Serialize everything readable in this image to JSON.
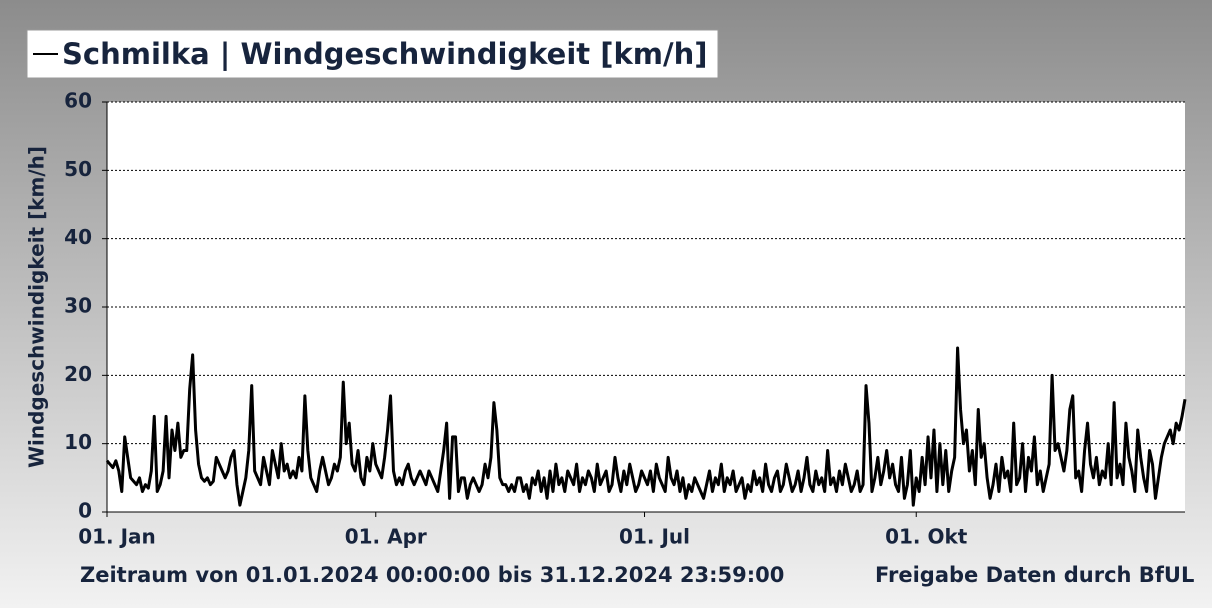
{
  "chart_data": {
    "type": "line",
    "y_label": "Windgeschwindigkeit [km/h]",
    "footer_left": "Zeitraum von 01.01.2024 00:00:00 bis 31.12.2024 23:59:00",
    "footer_right": "Freigabe Daten durch BfUL",
    "ylim": [
      0,
      60
    ],
    "yticks": [
      0,
      10,
      20,
      30,
      40,
      50,
      60
    ],
    "grid": true,
    "categories": [
      "01. Jan",
      null,
      null,
      null,
      null,
      null,
      null,
      null,
      null,
      null,
      null,
      null,
      null,
      null,
      null,
      null,
      null,
      null,
      null,
      null,
      null,
      null,
      null,
      null,
      null,
      null,
      null,
      null,
      null,
      null,
      null,
      null,
      null,
      null,
      null,
      null,
      null,
      null,
      null,
      null,
      null,
      null,
      null,
      null,
      null,
      null,
      null,
      null,
      null,
      null,
      null,
      null,
      null,
      null,
      null,
      null,
      null,
      null,
      null,
      null,
      null,
      null,
      null,
      null,
      null,
      null,
      null,
      null,
      null,
      null,
      null,
      null,
      null,
      null,
      null,
      null,
      null,
      null,
      null,
      null,
      null,
      null,
      null,
      null,
      null,
      null,
      null,
      null,
      null,
      null,
      null,
      "01. Apr",
      null,
      null,
      null,
      null,
      null,
      null,
      null,
      null,
      null,
      null,
      null,
      null,
      null,
      null,
      null,
      null,
      null,
      null,
      null,
      null,
      null,
      null,
      null,
      null,
      null,
      null,
      null,
      null,
      null,
      null,
      null,
      null,
      null,
      null,
      null,
      null,
      null,
      null,
      null,
      null,
      null,
      null,
      null,
      null,
      null,
      null,
      null,
      null,
      null,
      null,
      null,
      null,
      null,
      null,
      null,
      null,
      null,
      null,
      null,
      null,
      null,
      null,
      null,
      null,
      null,
      null,
      null,
      null,
      null,
      null,
      null,
      null,
      null,
      null,
      null,
      null,
      null,
      null,
      null,
      null,
      null,
      null,
      null,
      null,
      null,
      null,
      null,
      null,
      null,
      null,
      "01. Jul",
      null,
      null,
      null,
      null,
      null,
      null,
      null,
      null,
      null,
      null,
      null,
      null,
      null,
      null,
      null,
      null,
      null,
      null,
      null,
      null,
      null,
      null,
      null,
      null,
      null,
      null,
      null,
      null,
      null,
      null,
      null,
      null,
      null,
      null,
      null,
      null,
      null,
      null,
      null,
      null,
      null,
      null,
      null,
      null,
      null,
      null,
      null,
      null,
      null,
      null,
      null,
      null,
      null,
      null,
      null,
      null,
      null,
      null,
      null,
      null,
      null,
      null,
      null,
      null,
      null,
      null,
      null,
      null,
      null,
      null,
      null,
      null,
      null,
      null,
      null,
      null,
      null,
      null,
      null,
      null,
      null,
      null,
      null,
      null,
      null,
      null,
      null,
      null,
      null,
      null,
      null,
      "01. Okt",
      null,
      null,
      null,
      null,
      null,
      null,
      null,
      null,
      null,
      null,
      null,
      null,
      null,
      null,
      null,
      null,
      null,
      null,
      null,
      null,
      null,
      null,
      null,
      null,
      null,
      null,
      null,
      null,
      null,
      null,
      null,
      null,
      null,
      null,
      null,
      null,
      null,
      null,
      null,
      null,
      null,
      null,
      null,
      null,
      null,
      null,
      null,
      null,
      null,
      null,
      null,
      null,
      null,
      null,
      null,
      null,
      null,
      null,
      null,
      null,
      null,
      null,
      null,
      null,
      null,
      null,
      null,
      null,
      null,
      null,
      null,
      null,
      null,
      null,
      null,
      null,
      null,
      null,
      null,
      null,
      null,
      null,
      null,
      null,
      null,
      null,
      null,
      null,
      null,
      null,
      null
    ],
    "series": [
      {
        "name": "Schmilka | Windgeschwindigkeit [km/h]",
        "color": "#000000",
        "values": [
          7.5,
          7,
          6.5,
          7.5,
          6,
          3,
          11,
          8,
          5,
          4.5,
          4,
          5,
          3,
          4,
          3.5,
          6,
          14,
          3,
          4,
          6,
          14,
          5,
          12,
          9,
          13,
          8,
          9,
          9,
          18,
          23,
          12,
          7,
          5,
          4.5,
          5,
          4,
          4.5,
          8,
          7,
          6,
          5,
          6,
          8,
          9,
          4,
          1,
          3,
          5,
          9,
          18.5,
          6,
          5,
          4,
          8,
          6,
          4,
          9,
          7,
          5,
          10,
          6,
          7,
          5,
          6,
          5,
          8,
          6,
          17,
          9,
          5,
          4,
          3,
          6,
          8,
          6,
          4,
          5,
          7,
          6,
          8,
          19,
          10,
          13,
          7,
          6,
          9,
          5,
          4,
          8,
          6,
          10,
          7,
          6,
          5,
          8,
          12,
          17,
          6,
          4,
          5,
          4,
          6,
          7,
          5,
          4,
          5,
          6,
          5,
          4,
          6,
          5,
          4,
          3,
          6,
          9,
          13,
          2,
          11,
          11,
          3,
          5,
          5,
          2,
          4,
          5,
          4,
          3,
          4,
          7,
          5,
          8,
          16,
          12,
          5,
          4,
          4,
          3,
          4,
          3,
          5,
          5,
          3,
          4,
          2,
          5,
          4,
          6,
          3,
          5,
          2,
          6,
          3,
          7,
          4,
          5,
          3,
          6,
          5,
          4,
          7,
          3,
          5,
          4,
          6,
          5,
          3,
          7,
          4,
          5,
          6,
          3,
          4,
          8,
          5,
          3,
          6,
          4,
          7,
          5,
          3,
          4,
          6,
          5,
          4,
          6,
          3,
          7,
          5,
          4,
          3,
          8,
          5,
          4,
          6,
          3,
          5,
          2,
          4,
          3,
          5,
          4,
          3,
          2,
          4,
          6,
          3,
          5,
          4,
          7,
          3,
          5,
          4,
          6,
          3,
          4,
          5,
          2,
          4,
          3,
          6,
          4,
          5,
          3,
          7,
          4,
          3,
          5,
          6,
          3,
          4,
          7,
          5,
          3,
          4,
          6,
          3,
          5,
          8,
          4,
          3,
          6,
          4,
          5,
          3,
          9,
          4,
          5,
          3,
          6,
          4,
          7,
          5,
          3,
          4,
          6,
          3,
          4,
          18.5,
          13,
          3,
          5,
          8,
          4,
          6,
          9,
          5,
          7,
          4,
          3,
          8,
          2,
          4,
          9,
          1,
          5,
          3,
          8,
          4,
          11,
          5,
          12,
          3,
          10,
          4,
          9,
          3,
          6,
          8,
          24,
          15,
          10,
          12,
          6,
          9,
          4,
          15,
          8,
          10,
          5,
          2,
          4,
          7,
          3,
          8,
          5,
          6,
          3,
          13,
          4,
          5,
          10,
          3,
          8,
          6,
          11,
          4,
          6,
          3,
          5,
          7,
          20,
          9,
          10,
          8,
          6,
          9,
          15,
          17,
          5,
          6,
          3,
          9,
          13,
          7,
          5,
          8,
          4,
          6,
          5,
          10,
          4,
          16,
          5,
          7,
          4,
          13,
          8,
          6,
          3,
          12,
          8,
          5,
          3,
          9,
          7,
          2,
          5,
          8,
          10,
          11,
          12,
          10,
          13,
          12,
          14,
          16.5
        ]
      }
    ]
  }
}
